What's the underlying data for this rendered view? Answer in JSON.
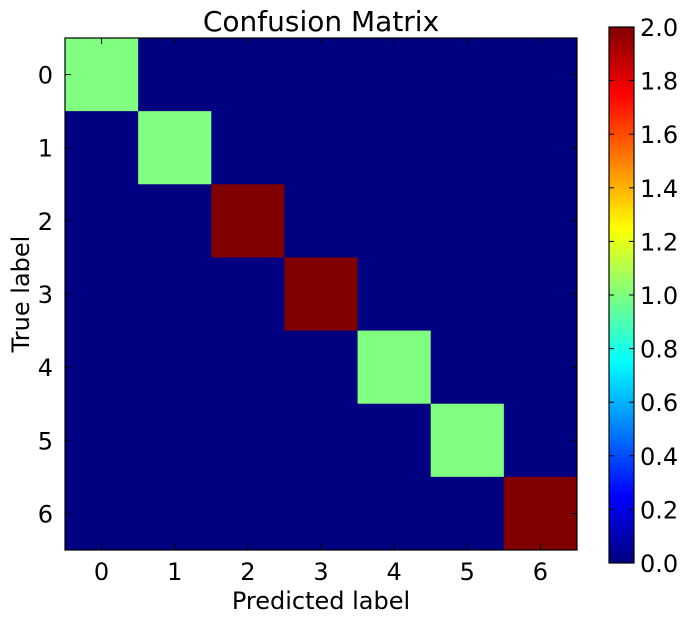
{
  "chart_data": {
    "type": "heatmap",
    "title": "Confusion Matrix",
    "xlabel": "Predicted label",
    "ylabel": "True label",
    "x_categories": [
      "0",
      "1",
      "2",
      "3",
      "4",
      "5",
      "6"
    ],
    "y_categories": [
      "0",
      "1",
      "2",
      "3",
      "4",
      "5",
      "6"
    ],
    "values": [
      [
        1,
        0,
        0,
        0,
        0,
        0,
        0
      ],
      [
        0,
        1,
        0,
        0,
        0,
        0,
        0
      ],
      [
        0,
        0,
        2,
        0,
        0,
        0,
        0
      ],
      [
        0,
        0,
        0,
        2,
        0,
        0,
        0
      ],
      [
        0,
        0,
        0,
        0,
        1,
        0,
        0
      ],
      [
        0,
        0,
        0,
        0,
        0,
        1,
        0
      ],
      [
        0,
        0,
        0,
        0,
        0,
        0,
        2
      ]
    ],
    "colormap": "jet",
    "vmin": 0,
    "vmax": 2,
    "colorbar_ticks": [
      "0.0",
      "0.2",
      "0.4",
      "0.6",
      "0.8",
      "1.0",
      "1.2",
      "1.4",
      "1.6",
      "1.8",
      "2.0"
    ],
    "grid": false
  }
}
